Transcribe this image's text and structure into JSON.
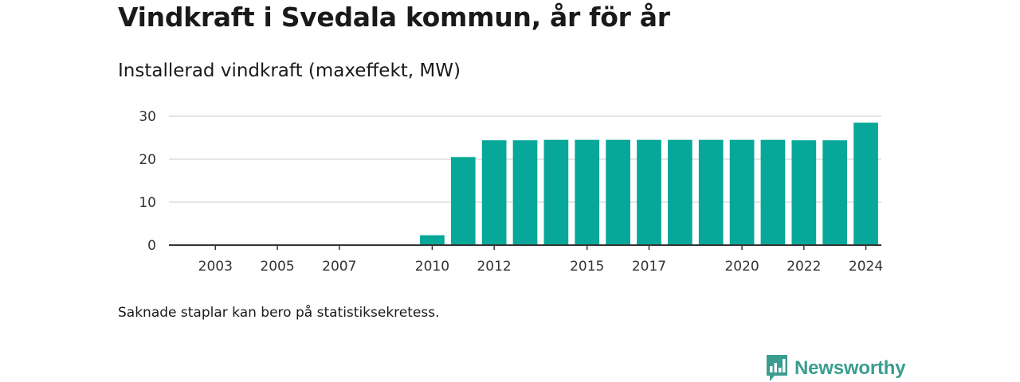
{
  "header": {
    "title": "Vindkraft i Svedala kommun, år för år",
    "subtitle": "Installerad vindkraft (maxeffekt, MW)"
  },
  "footnote": "Saknade staplar kan bero på statistiksekretess.",
  "brand": {
    "name": "Newsworthy",
    "icon": "newsworthy-logo-icon",
    "color": "#3a9d8f"
  },
  "chart_data": {
    "type": "bar",
    "title": "Vindkraft i Svedala kommun, år för år",
    "subtitle": "Installerad vindkraft (maxeffekt, MW)",
    "xlabel": "",
    "ylabel": "",
    "categories": [
      2002,
      2003,
      2004,
      2005,
      2006,
      2007,
      2008,
      2009,
      2010,
      2011,
      2012,
      2013,
      2014,
      2015,
      2016,
      2017,
      2018,
      2019,
      2020,
      2021,
      2022,
      2023,
      2024
    ],
    "values": [
      0,
      0,
      0,
      0,
      0,
      0,
      0,
      0,
      2.3,
      20.5,
      24.4,
      24.4,
      24.5,
      24.5,
      24.5,
      24.5,
      24.5,
      24.5,
      24.5,
      24.5,
      24.4,
      24.4,
      28.5
    ],
    "x_tick_labels": [
      "2003",
      "2005",
      "2007",
      "2010",
      "2012",
      "2015",
      "2017",
      "2020",
      "2022",
      "2024"
    ],
    "y_ticks": [
      0,
      10,
      20,
      30
    ],
    "ylim": [
      0,
      30
    ],
    "grid": true,
    "bar_color": "#07a899",
    "grid_color": "#dddddd",
    "axis_color": "#333333"
  }
}
